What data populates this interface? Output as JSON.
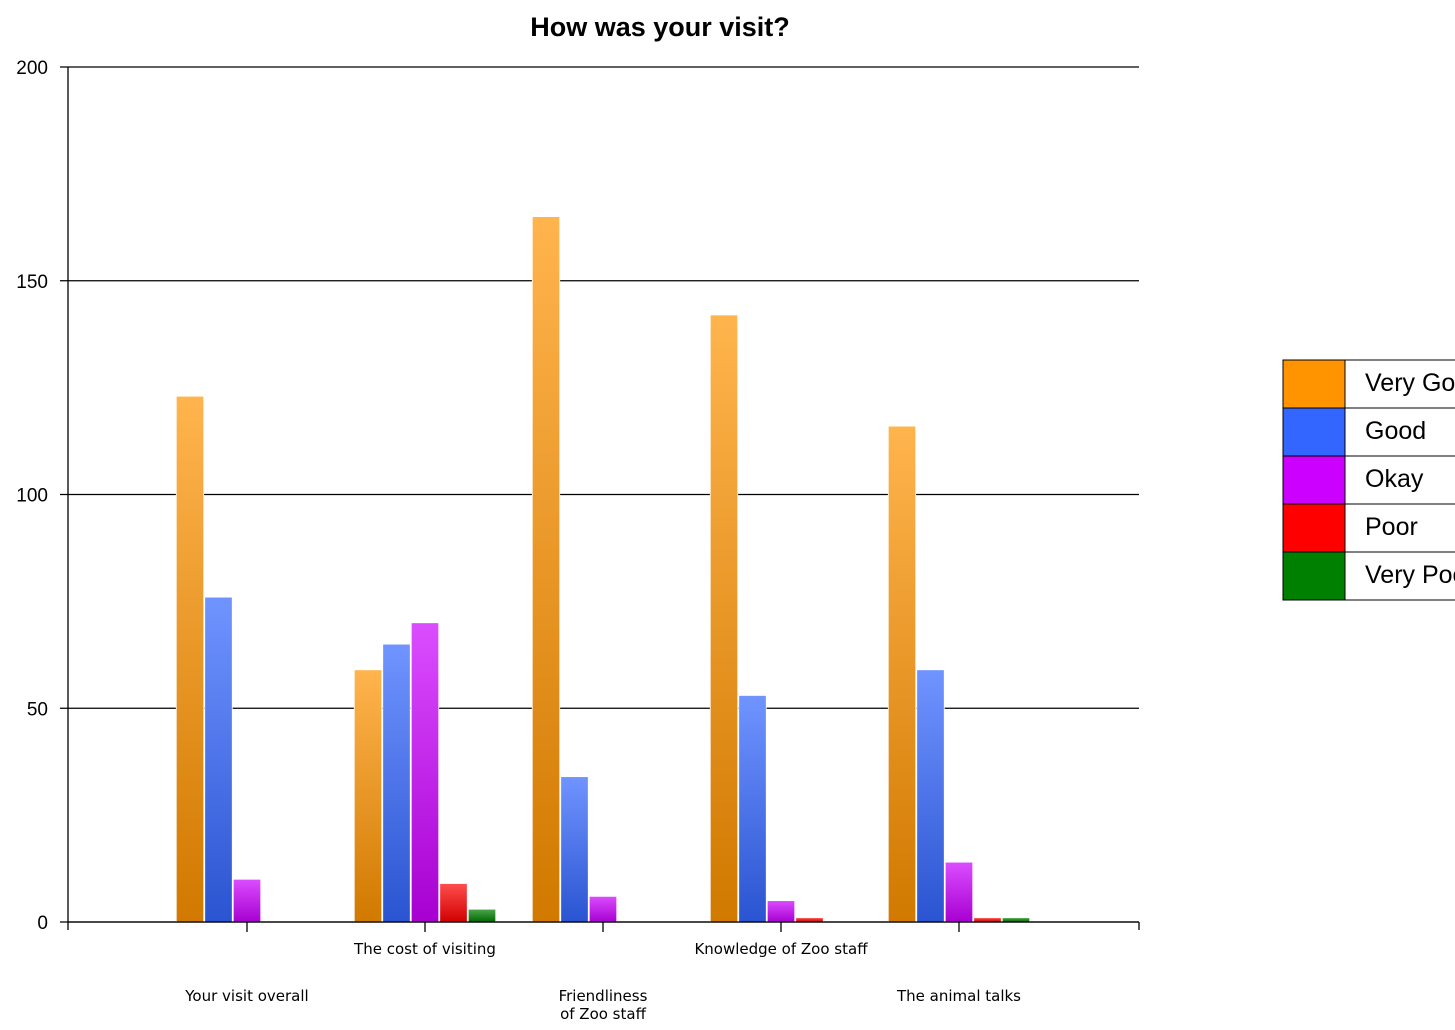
{
  "chart_data": {
    "type": "bar",
    "title": "How was your visit?",
    "xlabel": "",
    "ylabel": "",
    "ylim": [
      0,
      200
    ],
    "yticks": [
      0,
      50,
      100,
      150,
      200
    ],
    "grid": true,
    "legend_position": "right",
    "categories": [
      "Your visit overall",
      "The cost of visiting",
      "Friendliness of Zoo staff",
      "Knowledge of Zoo staff",
      "The animal talks"
    ],
    "series": [
      {
        "name": "Very Good",
        "color": "#ff9400",
        "values": [
          123,
          59,
          165,
          142,
          116
        ]
      },
      {
        "name": "Good",
        "color": "#3366ff",
        "values": [
          76,
          65,
          34,
          53,
          59
        ]
      },
      {
        "name": "Okay",
        "color": "#cc00ff",
        "values": [
          10,
          70,
          6,
          5,
          14
        ]
      },
      {
        "name": "Poor",
        "color": "#ff0000",
        "values": [
          0,
          9,
          0,
          1,
          1
        ]
      },
      {
        "name": "Very Poor",
        "color": "#008000",
        "values": [
          0,
          3,
          0,
          0,
          1
        ]
      }
    ]
  }
}
